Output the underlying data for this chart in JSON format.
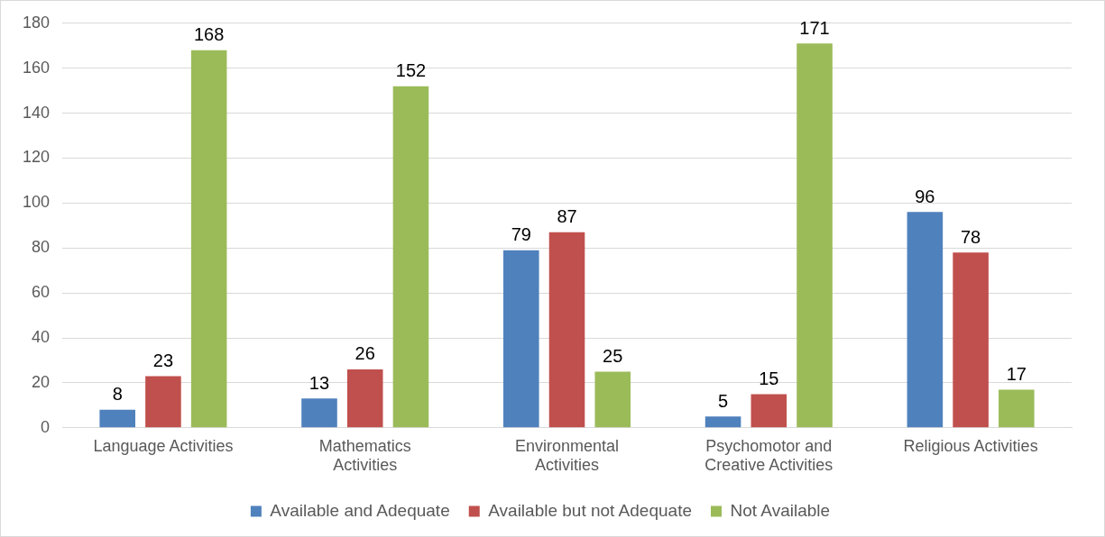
{
  "chart_data": {
    "type": "bar",
    "categories": [
      "Language Activities",
      "Mathematics Activities",
      "Environmental Activities",
      "Psychomotor and Creative Activities",
      "Religious Activities"
    ],
    "series": [
      {
        "name": "Available and Adequate",
        "color": "#4f81bd",
        "values": [
          8,
          13,
          79,
          5,
          96
        ]
      },
      {
        "name": "Available but not Adequate",
        "color": "#c0504d",
        "values": [
          23,
          26,
          87,
          15,
          78
        ]
      },
      {
        "name": "Not Available",
        "color": "#9bbb59",
        "values": [
          168,
          152,
          25,
          171,
          17
        ]
      }
    ],
    "ylim": [
      0,
      180
    ],
    "yticks": [
      0,
      20,
      40,
      60,
      80,
      100,
      120,
      140,
      160,
      180
    ],
    "grid": "y",
    "legend": "bottom",
    "data_labels": true
  }
}
